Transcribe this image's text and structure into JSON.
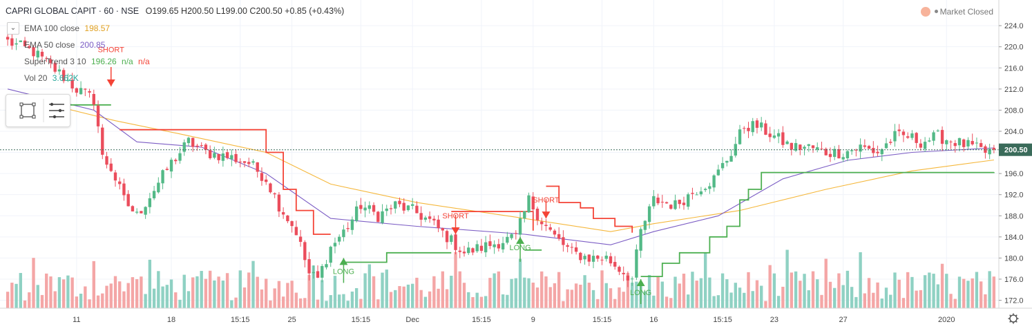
{
  "header": {
    "symbol": "CAPRI GLOBAL CAPIT · 60 · NSE",
    "ohlc": "O199.65  H200.50  L199.00  C200.50",
    "change": "+0.85 (+0.43%)"
  },
  "legend": {
    "ema100_label": "EMA 100 close",
    "ema100_value": "198.57",
    "ema50_label": "EMA 50 close",
    "ema50_value": "200.85",
    "supertrend_label": "SuperTrend 3 10",
    "supertrend_value": "196.26",
    "supertrend_na1": "n/a",
    "supertrend_na2": "n/a",
    "vol_label": "Vol 20",
    "vol_value": "3.662K"
  },
  "status": {
    "market": "Market Closed"
  },
  "colors": {
    "up": "#53b987",
    "down": "#eb4d5c",
    "ema100": "#f5b73b",
    "ema50": "#7b5cc4",
    "st_up": "#4caf50",
    "st_down": "#f44336",
    "vol_up": "#8fd1c3",
    "vol_down": "#f4a6a6",
    "last_price_bg": "#3a6b5a"
  },
  "chart_data": {
    "type": "candlestick",
    "y_ticks": [
      172.0,
      176.0,
      180.0,
      184.0,
      188.0,
      192.0,
      196.0,
      200.0,
      204.0,
      208.0,
      212.0,
      216.0,
      220.0,
      224.0
    ],
    "ylim": [
      170.5,
      226.5
    ],
    "x_ticks": [
      "11",
      "18",
      "15:15",
      "25",
      "15:15",
      "Dec",
      "15:15",
      "9",
      "15:15",
      "16",
      "15:15",
      "23",
      "27",
      "2020"
    ],
    "last_price": "200.50",
    "anchors": [
      {
        "i": 0,
        "p": 221
      },
      {
        "i": 6,
        "p": 219
      },
      {
        "i": 12,
        "p": 215
      },
      {
        "i": 16,
        "p": 212
      },
      {
        "i": 20,
        "p": 210
      },
      {
        "i": 21,
        "p": 205
      },
      {
        "i": 22,
        "p": 199
      },
      {
        "i": 24,
        "p": 197
      },
      {
        "i": 27,
        "p": 191
      },
      {
        "i": 30,
        "p": 188
      },
      {
        "i": 34,
        "p": 193
      },
      {
        "i": 38,
        "p": 198
      },
      {
        "i": 42,
        "p": 202
      },
      {
        "i": 46,
        "p": 200
      },
      {
        "i": 52,
        "p": 199
      },
      {
        "i": 56,
        "p": 198
      },
      {
        "i": 60,
        "p": 195
      },
      {
        "i": 63,
        "p": 190
      },
      {
        "i": 67,
        "p": 185
      },
      {
        "i": 70,
        "p": 177
      },
      {
        "i": 72,
        "p": 176
      },
      {
        "i": 75,
        "p": 182
      },
      {
        "i": 79,
        "p": 186
      },
      {
        "i": 82,
        "p": 190
      },
      {
        "i": 86,
        "p": 188
      },
      {
        "i": 90,
        "p": 190
      },
      {
        "i": 94,
        "p": 189
      },
      {
        "i": 98,
        "p": 187
      },
      {
        "i": 102,
        "p": 184
      },
      {
        "i": 106,
        "p": 181
      },
      {
        "i": 110,
        "p": 182
      },
      {
        "i": 114,
        "p": 183
      },
      {
        "i": 118,
        "p": 184
      },
      {
        "i": 121,
        "p": 191
      },
      {
        "i": 124,
        "p": 187
      },
      {
        "i": 127,
        "p": 184
      },
      {
        "i": 131,
        "p": 181
      },
      {
        "i": 135,
        "p": 180
      },
      {
        "i": 139,
        "p": 180
      },
      {
        "i": 142,
        "p": 178
      },
      {
        "i": 145,
        "p": 176
      },
      {
        "i": 147,
        "p": 185
      },
      {
        "i": 150,
        "p": 191
      },
      {
        "i": 155,
        "p": 190
      },
      {
        "i": 160,
        "p": 193
      },
      {
        "i": 164,
        "p": 195
      },
      {
        "i": 168,
        "p": 200
      },
      {
        "i": 171,
        "p": 205
      },
      {
        "i": 174,
        "p": 205
      },
      {
        "i": 178,
        "p": 203
      },
      {
        "i": 182,
        "p": 201
      },
      {
        "i": 186,
        "p": 201
      },
      {
        "i": 190,
        "p": 200
      },
      {
        "i": 194,
        "p": 200
      },
      {
        "i": 198,
        "p": 201
      },
      {
        "i": 202,
        "p": 200
      },
      {
        "i": 206,
        "p": 203
      },
      {
        "i": 209,
        "p": 203
      },
      {
        "i": 212,
        "p": 202
      },
      {
        "i": 216,
        "p": 203
      },
      {
        "i": 220,
        "p": 202
      },
      {
        "i": 224,
        "p": 201
      },
      {
        "i": 227,
        "p": 200
      },
      {
        "i": 229,
        "p": 200.5
      }
    ],
    "ema100": [
      [
        0,
        211
      ],
      [
        25,
        206
      ],
      [
        40,
        203.5
      ],
      [
        60,
        200
      ],
      [
        75,
        194
      ],
      [
        95,
        190.5
      ],
      [
        120,
        187.5
      ],
      [
        140,
        185
      ],
      [
        150,
        186.5
      ],
      [
        170,
        189
      ],
      [
        190,
        193
      ],
      [
        210,
        196.5
      ],
      [
        229,
        198.57
      ]
    ],
    "ema50": [
      [
        0,
        212
      ],
      [
        20,
        208
      ],
      [
        30,
        202
      ],
      [
        45,
        201
      ],
      [
        60,
        196
      ],
      [
        75,
        187.5
      ],
      [
        95,
        186
      ],
      [
        120,
        184.5
      ],
      [
        140,
        182.5
      ],
      [
        150,
        185
      ],
      [
        165,
        188
      ],
      [
        180,
        195
      ],
      [
        195,
        198.5
      ],
      [
        210,
        200
      ],
      [
        229,
        200.85
      ]
    ],
    "supertrend": [
      {
        "dir": "up",
        "pts": [
          [
            0,
            209
          ],
          [
            24,
            209
          ]
        ]
      },
      {
        "dir": "down",
        "pts": [
          [
            26,
            204.3
          ],
          [
            59,
            204.3
          ],
          [
            60,
            200
          ],
          [
            64,
            193
          ],
          [
            67,
            189
          ],
          [
            71,
            184.5
          ],
          [
            75,
            184.5
          ]
        ]
      },
      {
        "dir": "up",
        "pts": [
          [
            78,
            179.2
          ],
          [
            86,
            179.2
          ],
          [
            88,
            181
          ],
          [
            103,
            181
          ]
        ]
      },
      {
        "dir": "down",
        "pts": [
          [
            103,
            188.8
          ],
          [
            118,
            188.8
          ],
          [
            121,
            188.8
          ],
          [
            122,
            185.2
          ]
        ]
      },
      {
        "dir": "up",
        "pts": [
          [
            120,
            181.5
          ],
          [
            124,
            181.5
          ]
        ]
      },
      {
        "dir": "down",
        "pts": [
          [
            125,
            193.6
          ],
          [
            128,
            190.5
          ],
          [
            133,
            189.5
          ],
          [
            136,
            187.5
          ],
          [
            141,
            186
          ],
          [
            145,
            184.8
          ]
        ]
      },
      {
        "dir": "up",
        "pts": [
          [
            147,
            176.5
          ],
          [
            150,
            176.5
          ],
          [
            152,
            179
          ],
          [
            156,
            181
          ],
          [
            160,
            181
          ],
          [
            163,
            184
          ],
          [
            167,
            186
          ],
          [
            170,
            191
          ],
          [
            172,
            193
          ],
          [
            175,
            196.2
          ],
          [
            229,
            196.26
          ]
        ]
      }
    ],
    "signals": [
      {
        "type": "SHORT",
        "i": 24,
        "price": 212.5,
        "label_price": 219,
        "color": "#f44336"
      },
      {
        "type": "LONG",
        "i": 78,
        "price": 180,
        "label_price": 177,
        "color": "#4caf50"
      },
      {
        "type": "SHORT",
        "i": 104,
        "price": 184.5,
        "label_price": 187.5,
        "color": "#f44336"
      },
      {
        "type": "LONG",
        "i": 119,
        "price": 184,
        "label_price": 181.5,
        "color": "#4caf50"
      },
      {
        "type": "SHORT",
        "i": 125,
        "price": 187.5,
        "label_price": 190.5,
        "color": "#f44336"
      },
      {
        "type": "LONG",
        "i": 147,
        "price": 176,
        "label_price": 173,
        "color": "#4caf50"
      }
    ]
  }
}
